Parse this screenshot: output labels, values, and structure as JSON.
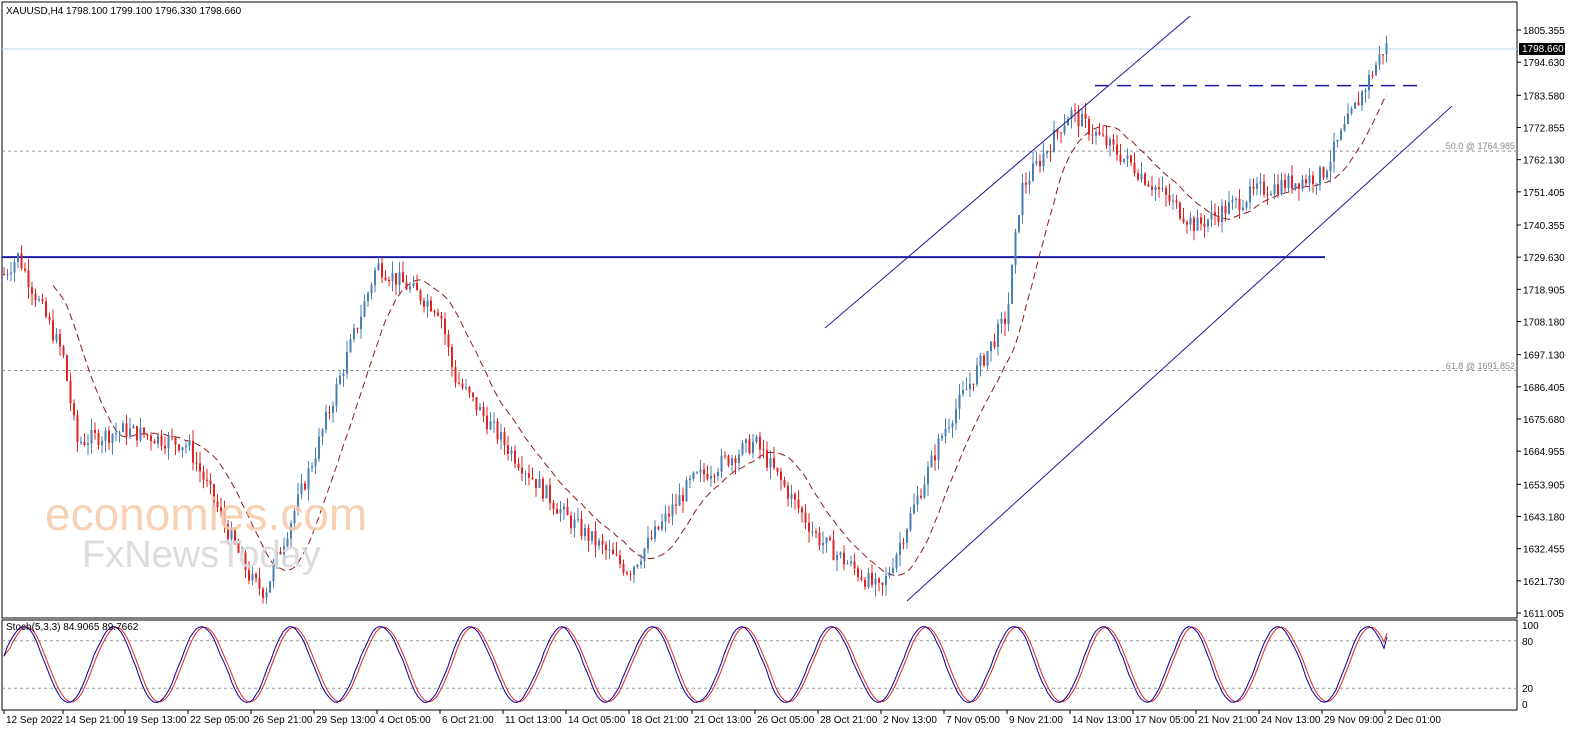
{
  "symbol_header": "XAUUSD,H4  1798.100 1799.100 1796.330 1798.660",
  "current_price": "1798.660",
  "price_axis": [
    "1805.355",
    "1794.630",
    "1783.580",
    "1772.855",
    "1762.130",
    "1751.405",
    "1740.355",
    "1729.630",
    "1718.905",
    "1708.180",
    "1697.130",
    "1686.405",
    "1675.680",
    "1664.955",
    "1653.905",
    "1643.180",
    "1632.455",
    "1621.730",
    "1611.005"
  ],
  "time_axis": [
    "12 Sep 2022",
    "14 Sep 21:00",
    "19 Sep 13:00",
    "22 Sep 05:00",
    "26 Sep 21:00",
    "29 Sep 13:00",
    "4 Oct 05:00",
    "6 Oct 21:00",
    "11 Oct 13:00",
    "14 Oct 05:00",
    "18 Oct 21:00",
    "21 Oct 13:00",
    "26 Oct 05:00",
    "28 Oct 21:00",
    "2 Nov 13:00",
    "7 Nov 05:00",
    "9 Nov 21:00",
    "14 Nov 13:00",
    "17 Nov 05:00",
    "21 Nov 21:00",
    "24 Nov 13:00",
    "29 Nov 09:00",
    "2 Dec 01:00"
  ],
  "fib_50_label": "50.0 @ 1764.985",
  "fib_618_label": "61.8 @ 1691.852",
  "stoch_header": "Stoch(5,3,3) 84.9065 89.7662",
  "stoch_axis": [
    "100",
    "80",
    "20",
    "0"
  ],
  "watermark_1": "economies.com",
  "watermark_2": "FxNewsToday",
  "colors": {
    "bull": "#4a7fb5",
    "bear": "#e02424",
    "ma": "#8b1a1a",
    "trend": "#1c1ca0",
    "grid": "#999999",
    "stoch_main": "#0000a0",
    "stoch_signal": "#e02424"
  },
  "chart_data": {
    "type": "candlestick",
    "ylim": [
      1611.005,
      1810.0
    ],
    "horizontal_levels": [
      1729.63,
      1764.985,
      1691.852,
      1786.8
    ],
    "anchors": [
      {
        "x": "12 Sep 2022",
        "price": 1724
      },
      {
        "x": "12 Sep 2022",
        "price": 1730
      },
      {
        "x": "14 Sep 21:00",
        "price": 1697
      },
      {
        "x": "14 Sep 21:00",
        "price": 1668
      },
      {
        "x": "19 Sep 13:00",
        "price": 1672
      },
      {
        "x": "22 Sep 05:00",
        "price": 1667
      },
      {
        "x": "26 Sep 21:00",
        "price": 1622
      },
      {
        "x": "26 Sep 21:00",
        "price": 1618
      },
      {
        "x": "29 Sep 13:00",
        "price": 1663
      },
      {
        "x": "4 Oct 05:00",
        "price": 1727
      },
      {
        "x": "6 Oct 21:00",
        "price": 1712
      },
      {
        "x": "6 Oct 21:00",
        "price": 1690
      },
      {
        "x": "11 Oct 13:00",
        "price": 1668
      },
      {
        "x": "14 Oct 05:00",
        "price": 1643
      },
      {
        "x": "18 Oct 21:00",
        "price": 1625
      },
      {
        "x": "21 Oct 13:00",
        "price": 1655
      },
      {
        "x": "26 Oct 05:00",
        "price": 1668
      },
      {
        "x": "28 Oct 21:00",
        "price": 1636
      },
      {
        "x": "2 Nov 13:00",
        "price": 1618
      },
      {
        "x": "7 Nov 05:00",
        "price": 1672
      },
      {
        "x": "9 Nov 21:00",
        "price": 1710
      },
      {
        "x": "9 Nov 21:00",
        "price": 1752
      },
      {
        "x": "14 Nov 13:00",
        "price": 1778
      },
      {
        "x": "17 Nov 05:00",
        "price": 1760
      },
      {
        "x": "21 Nov 21:00",
        "price": 1740
      },
      {
        "x": "24 Nov 13:00",
        "price": 1752
      },
      {
        "x": "29 Nov 09:00",
        "price": 1757
      },
      {
        "x": "2 Dec 01:00",
        "price": 1800
      },
      {
        "x": "2 Dec 01:00",
        "price": 1798.66
      }
    ],
    "stochastic": {
      "k": 84.9065,
      "d": 89.7662,
      "levels": [
        80,
        20
      ]
    }
  }
}
